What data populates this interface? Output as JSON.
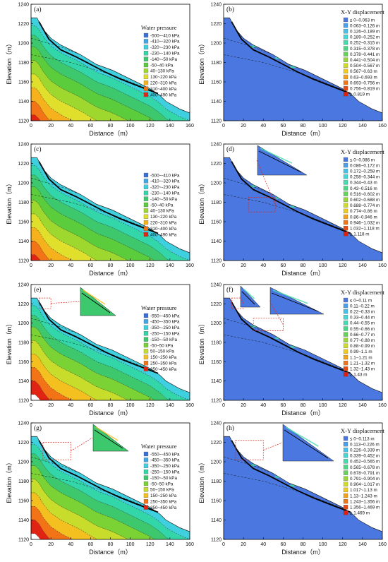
{
  "chart_data": [
    {
      "panel": "(a)",
      "type": "heatmap",
      "kind": "pressure",
      "xlabel": "Distance（m）",
      "ylabel": "Elevation（m）",
      "xlim": [
        0,
        160
      ],
      "ylim": [
        1120,
        1240
      ],
      "xticks": [
        "0",
        "20",
        "40",
        "60",
        "80",
        "100",
        "120",
        "140",
        "160"
      ],
      "yticks": [
        "1120",
        "1140",
        "1160",
        "1180",
        "1200",
        "1220",
        "1240"
      ],
      "legend_title": "Water pressure",
      "legend": [
        "-500~-410 kPa",
        "-410~-320 kPa",
        "-320~-230 kPa",
        "-230~-140 kPa",
        "-140~-50 kPa",
        "-50~40 kPa",
        "40~130 kPa",
        "130~220 kPa",
        "220~310 kPa",
        "310~400 kPa",
        "400~490 kPa"
      ],
      "colors": [
        "#3b6fd6",
        "#41a6e6",
        "#3fd0e0",
        "#33d6a9",
        "#3ec86e",
        "#5bcc3c",
        "#9ed82e",
        "#e0e02c",
        "#f6b21c",
        "#f27416",
        "#e02312"
      ]
    },
    {
      "panel": "(b)",
      "type": "heatmap",
      "kind": "displacement",
      "xlabel": "Distance（m）",
      "ylabel": "Elevation（m）",
      "xlim": [
        0,
        160
      ],
      "ylim": [
        1120,
        1240
      ],
      "xticks": [
        "0",
        "20",
        "40",
        "60",
        "80",
        "100",
        "120",
        "140",
        "160"
      ],
      "yticks": [
        "1120",
        "1140",
        "1160",
        "1180",
        "1200",
        "1220",
        "1240"
      ],
      "legend_title": "X-Y displacement",
      "legend": [
        "≤ 0~0.063 m",
        "0.063~0.126 m",
        "0.126~0.189 m",
        "0.189~0.252 m",
        "0.252~0.315 m",
        "0.315~0.378 m",
        "0.378~0.441 m",
        "0.441~0.504 m",
        "0.504~0.567 m",
        "0.567~0.63 m",
        "0.63~0.693 m",
        "0.693~0.756 m",
        "0.756~0.819 m",
        "≥ 0.819 m"
      ],
      "colors": [
        "#4a78e0",
        "#4aa0ea",
        "#46c2ea",
        "#44d8d8",
        "#44dcb0",
        "#4ad888",
        "#66d45a",
        "#9ad83a",
        "#d0dc2a",
        "#f0cc20",
        "#f4a21a",
        "#f27616",
        "#ea4a14",
        "#dc2010"
      ]
    },
    {
      "panel": "(c)",
      "type": "heatmap",
      "kind": "pressure",
      "xlabel": "Distance（m）",
      "ylabel": "Elevation（m）",
      "xlim": [
        0,
        160
      ],
      "ylim": [
        1120,
        1240
      ],
      "xticks": [
        "0",
        "20",
        "40",
        "60",
        "80",
        "100",
        "120",
        "140",
        "160"
      ],
      "yticks": [
        "1120",
        "1140",
        "1160",
        "1180",
        "1200",
        "1220",
        "1240"
      ],
      "legend_title": "",
      "legend": [
        "-500~-410 kPa",
        "-410~-320 kPa",
        "-320~-230 kPa",
        "-230~-140 kPa",
        "-140~-50 kPa",
        "-50~40 kPa",
        "40~130 kPa",
        "130~220 kPa",
        "220~310 kPa",
        "310~400 kPa",
        "400~490 kPa"
      ],
      "colors": [
        "#3b6fd6",
        "#41a6e6",
        "#3fd0e0",
        "#33d6a9",
        "#3ec86e",
        "#5bcc3c",
        "#9ed82e",
        "#e0e02c",
        "#f6b21c",
        "#f27416",
        "#e02312"
      ]
    },
    {
      "panel": "(d)",
      "type": "heatmap",
      "kind": "displacement",
      "xlabel": "Distance（m）",
      "ylabel": "Elevation（m）",
      "xlim": [
        0,
        160
      ],
      "ylim": [
        1120,
        1240
      ],
      "xticks": [
        "0",
        "20",
        "40",
        "60",
        "80",
        "100",
        "120",
        "140",
        "160"
      ],
      "yticks": [
        "1120",
        "1140",
        "1160",
        "1180",
        "1200",
        "1220",
        "1240"
      ],
      "legend_title": "X-Y displacement",
      "legend": [
        "≤ 0~0.086 m",
        "0.086~0.172 m",
        "0.172~0.258 m",
        "0.258~0.344 m",
        "0.344~0.43 m",
        "0.43~0.516 m",
        "0.516~0.602 m",
        "0.602~0.688 m",
        "0.688~0.774 m",
        "0.774~0.86 m",
        "0.86~0.946 m",
        "0.946~1.032 m",
        "1.032~1.118 m",
        "≥ 1.118 m"
      ],
      "colors": [
        "#4a78e0",
        "#4aa0ea",
        "#46c2ea",
        "#44d8d8",
        "#44dcb0",
        "#4ad888",
        "#66d45a",
        "#9ad83a",
        "#d0dc2a",
        "#f0cc20",
        "#f4a21a",
        "#f27616",
        "#ea4a14",
        "#dc2010"
      ]
    },
    {
      "panel": "(e)",
      "type": "heatmap",
      "kind": "pressure",
      "xlabel": "Distance（m）",
      "ylabel": "Elevation（m）",
      "xlim": [
        0,
        160
      ],
      "ylim": [
        1120,
        1240
      ],
      "xticks": [
        "0",
        "20",
        "40",
        "60",
        "80",
        "100",
        "120",
        "140",
        "160"
      ],
      "yticks": [
        "1120",
        "1140",
        "1160",
        "1180",
        "1200",
        "1220",
        "1240"
      ],
      "legend_title": "Water pressure",
      "legend": [
        "-550~-450 kPa",
        "-450~-350 kPa",
        "-350~-250 kPa",
        "-250~-150 kPa",
        "-150~-50 kPa",
        "-50~50 kPa",
        "50~150 kPa",
        "150~250 kPa",
        "250~350 kPa",
        "350~450 kPa"
      ],
      "colors": [
        "#3b6fd6",
        "#41a6e6",
        "#3fd0e0",
        "#33d6a9",
        "#3ec86e",
        "#7ad234",
        "#c8dc2c",
        "#f4c020",
        "#f27416",
        "#e02312"
      ]
    },
    {
      "panel": "(f)",
      "type": "heatmap",
      "kind": "displacement",
      "xlabel": "Distance（m）",
      "ylabel": "Elevation（m）",
      "xlim": [
        0,
        160
      ],
      "ylim": [
        1120,
        1240
      ],
      "xticks": [
        "0",
        "20",
        "40",
        "60",
        "80",
        "100",
        "120",
        "140",
        "160"
      ],
      "yticks": [
        "1120",
        "1140",
        "1160",
        "1180",
        "1200",
        "1220",
        "1240"
      ],
      "legend_title": "X-Y displacement",
      "legend": [
        "≤ 0~0.11 m",
        "0.11~0.22 m",
        "0.22~0.33 m",
        "0.33~0.44 m",
        "0.44~0.55 m",
        "0.55~0.66 m",
        "0.66~0.77 m",
        "0.77~0.88 m",
        "0.88~0.99 m",
        "0.99~1.1 m",
        "1.1~1.21 m",
        "1.21~1.32 m",
        "1.32~1.43 m",
        "≥ 1.43 m"
      ],
      "colors": [
        "#4a78e0",
        "#4aa0ea",
        "#46c2ea",
        "#44d8d8",
        "#44dcb0",
        "#4ad888",
        "#66d45a",
        "#9ad83a",
        "#d0dc2a",
        "#f0cc20",
        "#f4a21a",
        "#f27616",
        "#ea4a14",
        "#dc2010"
      ]
    },
    {
      "panel": "(g)",
      "type": "heatmap",
      "kind": "pressure",
      "xlabel": "Distance（m）",
      "ylabel": "Elevation（m）",
      "xlim": [
        0,
        160
      ],
      "ylim": [
        1120,
        1240
      ],
      "xticks": [
        "0",
        "20",
        "40",
        "60",
        "80",
        "100",
        "120",
        "140",
        "160"
      ],
      "yticks": [
        "1120",
        "1140",
        "1160",
        "1180",
        "1200",
        "1220",
        "1240"
      ],
      "legend_title": "Water pressure",
      "legend": [
        "-550~-450 kPa",
        "-450~-350 kPa",
        "-350~-250 kPa",
        "-250~-150 kPa",
        "-150~-50 kPa",
        "-50~50 kPa",
        "50~150 kPa",
        "150~250 kPa",
        "250~350 kPa",
        "350~450 kPa"
      ],
      "colors": [
        "#3b6fd6",
        "#41a6e6",
        "#3fd0e0",
        "#33d6a9",
        "#3ec86e",
        "#7ad234",
        "#c8dc2c",
        "#f4c020",
        "#f27416",
        "#e02312"
      ]
    },
    {
      "panel": "(h)",
      "type": "heatmap",
      "kind": "displacement",
      "xlabel": "Distance（m）",
      "ylabel": "Elevation（m）",
      "xlim": [
        0,
        160
      ],
      "ylim": [
        1120,
        1240
      ],
      "xticks": [
        "0",
        "20",
        "40",
        "60",
        "80",
        "100",
        "120",
        "140",
        "160"
      ],
      "yticks": [
        "1120",
        "1140",
        "1160",
        "1180",
        "1200",
        "1220",
        "1240"
      ],
      "legend_title": "X-Y displacement",
      "legend": [
        "≤ 0~0.113 m",
        "0.113~0.226 m",
        "0.226~0.339 m",
        "0.339~0.452 m",
        "0.452~0.565 m",
        "0.565~0.678 m",
        "0.678~0.791 m",
        "0.791~0.904 m",
        "0.904~1.017 m",
        "1.017~1.13 m",
        "1.13~1.243 m",
        "1.243~1.356 m",
        "1.356~1.469 m",
        "≥ 1.469 m"
      ],
      "colors": [
        "#4a78e0",
        "#4aa0ea",
        "#46c2ea",
        "#44d8d8",
        "#44dcb0",
        "#4ad888",
        "#66d45a",
        "#9ad83a",
        "#d0dc2a",
        "#f0cc20",
        "#f4a21a",
        "#f27616",
        "#ea4a14",
        "#dc2010"
      ]
    }
  ]
}
